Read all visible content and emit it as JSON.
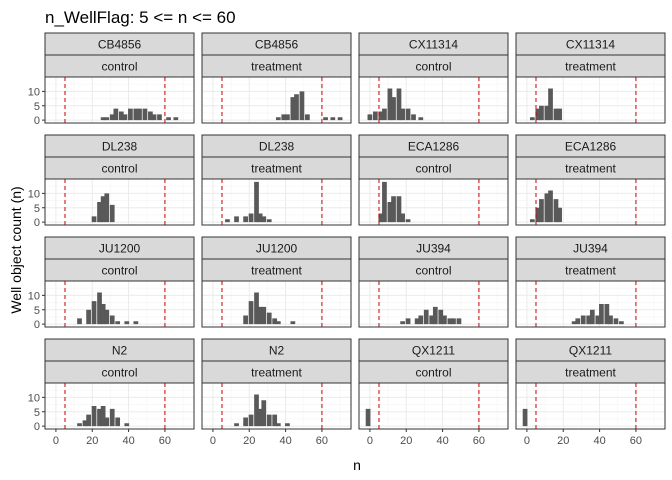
{
  "chart_data": {
    "type": "bar",
    "title": "n_WellFlag: 5 <= n <= 60",
    "xlabel": "n",
    "ylabel": "Well object count (n)",
    "xlim": [
      -6,
      76
    ],
    "ylim": [
      -1,
      15
    ],
    "x_ticks": [
      0,
      20,
      40,
      60
    ],
    "y_ticks": [
      0,
      5,
      10
    ],
    "bin_width": 2.6,
    "threshold_lines": [
      5,
      60
    ],
    "colors": {
      "bar": "#595959",
      "threshold": "#cc0000",
      "strip_fill": "#d9d9d9",
      "strip_border": "#333333",
      "panel_border": "#333333",
      "grid_major": "#ebebeb",
      "grid_minor": "#f5f5f5"
    },
    "panels": [
      {
        "strain": "CB4856",
        "condition": "control",
        "bars": [
          [
            26,
            1
          ],
          [
            28,
            1
          ],
          [
            31,
            2
          ],
          [
            33,
            4
          ],
          [
            36,
            3
          ],
          [
            38,
            2
          ],
          [
            41,
            4
          ],
          [
            44,
            4
          ],
          [
            46,
            4
          ],
          [
            49,
            4
          ],
          [
            52,
            3
          ],
          [
            54,
            2
          ],
          [
            57,
            2
          ],
          [
            62,
            1
          ],
          [
            66,
            1
          ]
        ]
      },
      {
        "strain": "CB4856",
        "condition": "treatment",
        "bars": [
          [
            36,
            1
          ],
          [
            39,
            2
          ],
          [
            41,
            2
          ],
          [
            44,
            8
          ],
          [
            46,
            9
          ],
          [
            49,
            10
          ],
          [
            52,
            2
          ],
          [
            62,
            1
          ],
          [
            66,
            1
          ],
          [
            70,
            1
          ]
        ]
      },
      {
        "strain": "CX11314",
        "condition": "control",
        "bars": [
          [
            0,
            2
          ],
          [
            3,
            3
          ],
          [
            6,
            3
          ],
          [
            8,
            4
          ],
          [
            11,
            11
          ],
          [
            13,
            8
          ],
          [
            16,
            11
          ],
          [
            18,
            4
          ],
          [
            21,
            4
          ],
          [
            24,
            2
          ],
          [
            28,
            1
          ]
        ]
      },
      {
        "strain": "CX11314",
        "condition": "treatment",
        "bars": [
          [
            3,
            1
          ],
          [
            6,
            4
          ],
          [
            8,
            5
          ],
          [
            11,
            5
          ],
          [
            13,
            11
          ],
          [
            16,
            4
          ],
          [
            18,
            4
          ]
        ]
      },
      {
        "strain": "DL238",
        "condition": "control",
        "bars": [
          [
            21,
            2
          ],
          [
            24,
            7
          ],
          [
            26,
            9
          ],
          [
            28,
            10
          ],
          [
            31,
            6
          ]
        ]
      },
      {
        "strain": "DL238",
        "condition": "treatment",
        "bars": [
          [
            8,
            1
          ],
          [
            13,
            2
          ],
          [
            18,
            2
          ],
          [
            21,
            3
          ],
          [
            24,
            14
          ],
          [
            26,
            3
          ],
          [
            28,
            2
          ],
          [
            31,
            1
          ]
        ]
      },
      {
        "strain": "ECA1286",
        "condition": "control",
        "bars": [
          [
            6,
            3
          ],
          [
            8,
            14
          ],
          [
            11,
            7
          ],
          [
            13,
            9
          ],
          [
            16,
            9
          ],
          [
            18,
            3
          ],
          [
            21,
            1
          ]
        ]
      },
      {
        "strain": "ECA1286",
        "condition": "treatment",
        "bars": [
          [
            3,
            1
          ],
          [
            6,
            5
          ],
          [
            8,
            8
          ],
          [
            11,
            10
          ],
          [
            13,
            11
          ],
          [
            16,
            8
          ],
          [
            18,
            5
          ]
        ]
      },
      {
        "strain": "JU1200",
        "condition": "control",
        "bars": [
          [
            13,
            2
          ],
          [
            18,
            5
          ],
          [
            21,
            8
          ],
          [
            24,
            11
          ],
          [
            26,
            7
          ],
          [
            28,
            5
          ],
          [
            31,
            3
          ],
          [
            34,
            1
          ],
          [
            39,
            1
          ],
          [
            44,
            1
          ]
        ]
      },
      {
        "strain": "JU1200",
        "condition": "treatment",
        "bars": [
          [
            18,
            3
          ],
          [
            21,
            8
          ],
          [
            24,
            11
          ],
          [
            26,
            6
          ],
          [
            28,
            6
          ],
          [
            31,
            4
          ],
          [
            34,
            2
          ],
          [
            36,
            1
          ],
          [
            44,
            1
          ]
        ]
      },
      {
        "strain": "JU394",
        "condition": "control",
        "bars": [
          [
            18,
            1
          ],
          [
            21,
            2
          ],
          [
            26,
            2
          ],
          [
            28,
            3
          ],
          [
            31,
            5
          ],
          [
            34,
            3
          ],
          [
            36,
            6
          ],
          [
            39,
            5
          ],
          [
            41,
            3
          ],
          [
            44,
            2
          ],
          [
            46,
            2
          ],
          [
            49,
            2
          ]
        ]
      },
      {
        "strain": "JU394",
        "condition": "treatment",
        "bars": [
          [
            26,
            1
          ],
          [
            28,
            2
          ],
          [
            31,
            3
          ],
          [
            34,
            3
          ],
          [
            36,
            5
          ],
          [
            39,
            3
          ],
          [
            41,
            7
          ],
          [
            44,
            7
          ],
          [
            46,
            3
          ],
          [
            49,
            2
          ],
          [
            52,
            1
          ]
        ]
      },
      {
        "strain": "N2",
        "condition": "control",
        "bars": [
          [
            13,
            1
          ],
          [
            16,
            2
          ],
          [
            18,
            4
          ],
          [
            21,
            7
          ],
          [
            24,
            6
          ],
          [
            26,
            7
          ],
          [
            28,
            3
          ],
          [
            31,
            6
          ],
          [
            34,
            3
          ],
          [
            39,
            1
          ]
        ]
      },
      {
        "strain": "N2",
        "condition": "treatment",
        "bars": [
          [
            13,
            1
          ],
          [
            18,
            3
          ],
          [
            21,
            4
          ],
          [
            24,
            11
          ],
          [
            26,
            6
          ],
          [
            28,
            9
          ],
          [
            31,
            4
          ],
          [
            34,
            4
          ],
          [
            36,
            1
          ],
          [
            41,
            1
          ]
        ]
      },
      {
        "strain": "QX1211",
        "condition": "control",
        "bars": [
          [
            -1,
            6
          ]
        ]
      },
      {
        "strain": "QX1211",
        "condition": "treatment",
        "bars": [
          [
            -1,
            6
          ]
        ]
      }
    ]
  }
}
